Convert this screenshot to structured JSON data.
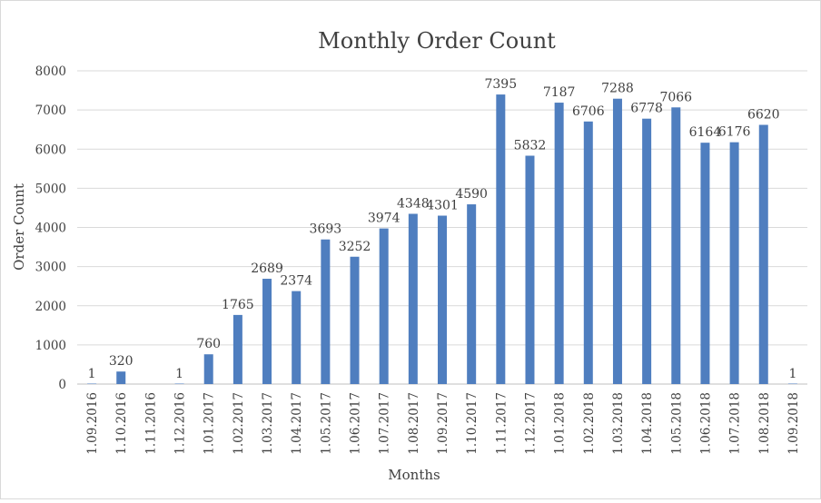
{
  "chart_data": {
    "type": "bar",
    "title": "Monthly Order Count",
    "xlabel": "Months",
    "ylabel": "Order Count",
    "ylim": [
      0,
      8000
    ],
    "yticks": [
      0,
      1000,
      2000,
      3000,
      4000,
      5000,
      6000,
      7000,
      8000
    ],
    "grid": true,
    "legend": "none",
    "bar_color": "#4f7ebf",
    "categories": [
      "1.09.2016",
      "1.10.2016",
      "1.11.2016",
      "1.12.2016",
      "1.01.2017",
      "1.02.2017",
      "1.03.2017",
      "1.04.2017",
      "1.05.2017",
      "1.06.2017",
      "1.07.2017",
      "1.08.2017",
      "1.09.2017",
      "1.10.2017",
      "1.11.2017",
      "1.12.2017",
      "1.01.2018",
      "1.02.2018",
      "1.03.2018",
      "1.04.2018",
      "1.05.2018",
      "1.06.2018",
      "1.07.2018",
      "1.08.2018",
      "1.09.2018"
    ],
    "values": [
      1,
      320,
      null,
      1,
      760,
      1765,
      2689,
      2374,
      3693,
      3252,
      3974,
      4348,
      4301,
      4590,
      7395,
      5832,
      7187,
      6706,
      7288,
      6778,
      7066,
      6164,
      6176,
      6620,
      1
    ]
  }
}
